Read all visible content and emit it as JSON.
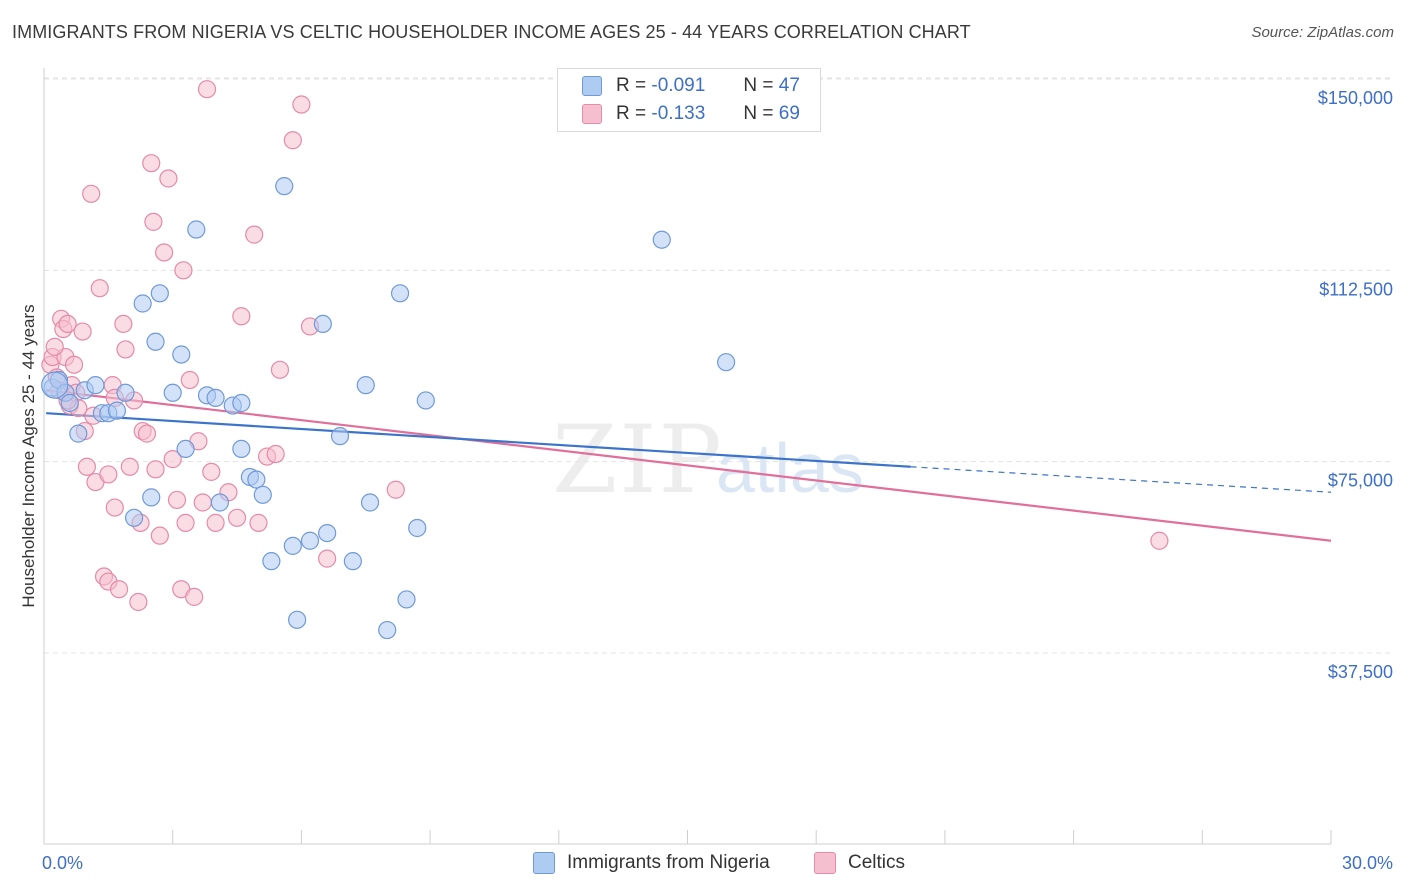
{
  "header": {
    "title": "IMMIGRANTS FROM NIGERIA VS CELTIC HOUSEHOLDER INCOME AGES 25 - 44 YEARS CORRELATION CHART",
    "source": "Source: ZipAtlas.com"
  },
  "legend": {
    "r_label": "R =",
    "n_label": "N =",
    "series": [
      {
        "r": "-0.091",
        "n": "47"
      },
      {
        "r": "-0.133",
        "n": "69"
      }
    ]
  },
  "bottom_legend": [
    "Immigrants from Nigeria",
    "Celtics"
  ],
  "watermark": {
    "zip": "ZIP",
    "atlas": "atlas"
  },
  "colors": {
    "nigeria_fill": "#aecbf2",
    "nigeria_stroke": "#6f9ad8",
    "nigeria_line": "#3b74c9",
    "celtics_fill": "#f6bfd0",
    "celtics_stroke": "#e58aa8",
    "celtics_line": "#e0709a",
    "tick_label": "#3d6fc6"
  },
  "chart_data": {
    "type": "scatter",
    "title": "IMMIGRANTS FROM NIGERIA VS CELTIC HOUSEHOLDER INCOME AGES 25 - 44 YEARS CORRELATION CHART",
    "xlabel": "",
    "ylabel": "Householder Income Ages 25 - 44 years",
    "xlim": [
      0,
      30
    ],
    "ylim": [
      18000,
      155000
    ],
    "x_tick_labels": [
      "0.0%",
      "30.0%"
    ],
    "y_ticks": [
      37500,
      75000,
      112500,
      150000
    ],
    "y_tick_labels": [
      "$37,500",
      "$75,000",
      "$112,500",
      "$150,000"
    ],
    "grid": true,
    "legend_position": "top-center",
    "series": [
      {
        "name": "Immigrants from Nigeria",
        "r": -0.091,
        "n": 47,
        "trend": {
          "x0": 0.05,
          "y0": 84500,
          "x1": 20.2,
          "y1": 74000,
          "dashed_to_x": 30,
          "dashed_to_y": 69000
        },
        "points": [
          [
            0.2,
            89500
          ],
          [
            0.35,
            91000
          ],
          [
            0.5,
            88500
          ],
          [
            0.6,
            86500
          ],
          [
            0.8,
            80500
          ],
          [
            0.95,
            89000
          ],
          [
            1.2,
            90000
          ],
          [
            1.35,
            84500
          ],
          [
            1.5,
            84500
          ],
          [
            1.7,
            85000
          ],
          [
            1.9,
            88500
          ],
          [
            2.1,
            64000
          ],
          [
            2.3,
            106000
          ],
          [
            2.5,
            68000
          ],
          [
            2.6,
            98500
          ],
          [
            2.7,
            108000
          ],
          [
            3.0,
            88500
          ],
          [
            3.2,
            96000
          ],
          [
            3.3,
            77500
          ],
          [
            3.55,
            120500
          ],
          [
            3.8,
            88000
          ],
          [
            4.0,
            87500
          ],
          [
            4.1,
            67000
          ],
          [
            4.4,
            86000
          ],
          [
            4.6,
            86500
          ],
          [
            4.6,
            77500
          ],
          [
            4.8,
            72000
          ],
          [
            4.95,
            71500
          ],
          [
            5.1,
            68500
          ],
          [
            5.3,
            55500
          ],
          [
            5.6,
            129000
          ],
          [
            5.8,
            58500
          ],
          [
            5.9,
            44000
          ],
          [
            6.2,
            59500
          ],
          [
            6.5,
            102000
          ],
          [
            6.6,
            61000
          ],
          [
            6.9,
            80000
          ],
          [
            7.2,
            55500
          ],
          [
            7.5,
            90000
          ],
          [
            7.6,
            67000
          ],
          [
            8.0,
            42000
          ],
          [
            8.3,
            108000
          ],
          [
            8.45,
            48000
          ],
          [
            8.7,
            62000
          ],
          [
            8.9,
            87000
          ],
          [
            14.4,
            118500
          ],
          [
            15.9,
            94500
          ]
        ]
      },
      {
        "name": "Celtics",
        "r": -0.133,
        "n": 69,
        "trend": {
          "x0": 0.05,
          "y0": 89000,
          "x1": 30,
          "y1": 59500
        },
        "points": [
          [
            0.15,
            94000
          ],
          [
            0.2,
            95500
          ],
          [
            0.3,
            91500
          ],
          [
            0.35,
            89000
          ],
          [
            0.4,
            103000
          ],
          [
            0.45,
            101000
          ],
          [
            0.5,
            95500
          ],
          [
            0.55,
            102000
          ],
          [
            0.6,
            86000
          ],
          [
            0.65,
            90000
          ],
          [
            0.7,
            94000
          ],
          [
            0.75,
            88500
          ],
          [
            0.8,
            85500
          ],
          [
            0.9,
            100500
          ],
          [
            0.95,
            81000
          ],
          [
            1.0,
            74000
          ],
          [
            1.1,
            127500
          ],
          [
            1.15,
            84000
          ],
          [
            1.2,
            71000
          ],
          [
            1.3,
            109000
          ],
          [
            1.4,
            52500
          ],
          [
            1.5,
            51500
          ],
          [
            1.5,
            72500
          ],
          [
            1.6,
            90000
          ],
          [
            1.65,
            66000
          ],
          [
            1.75,
            50000
          ],
          [
            1.85,
            102000
          ],
          [
            1.9,
            97000
          ],
          [
            2.0,
            74000
          ],
          [
            2.1,
            87000
          ],
          [
            2.2,
            47500
          ],
          [
            2.25,
            63000
          ],
          [
            2.3,
            81000
          ],
          [
            2.4,
            80500
          ],
          [
            2.5,
            133500
          ],
          [
            2.55,
            122000
          ],
          [
            2.6,
            73500
          ],
          [
            2.7,
            60500
          ],
          [
            2.8,
            116000
          ],
          [
            2.9,
            130500
          ],
          [
            3.0,
            75500
          ],
          [
            3.1,
            67500
          ],
          [
            3.2,
            50000
          ],
          [
            3.25,
            112500
          ],
          [
            3.3,
            63000
          ],
          [
            3.4,
            91000
          ],
          [
            3.5,
            48500
          ],
          [
            3.6,
            79000
          ],
          [
            3.7,
            67000
          ],
          [
            3.8,
            148000
          ],
          [
            3.9,
            73000
          ],
          [
            4.0,
            63000
          ],
          [
            4.3,
            69000
          ],
          [
            4.5,
            64000
          ],
          [
            4.6,
            103500
          ],
          [
            4.9,
            119500
          ],
          [
            5.0,
            63000
          ],
          [
            5.2,
            76000
          ],
          [
            5.4,
            76500
          ],
          [
            5.5,
            93000
          ],
          [
            5.8,
            138000
          ],
          [
            6.0,
            145000
          ],
          [
            6.2,
            101500
          ],
          [
            6.6,
            56000
          ],
          [
            8.2,
            69500
          ],
          [
            26.0,
            59500
          ],
          [
            0.55,
            87000
          ],
          [
            0.25,
            97500
          ],
          [
            1.65,
            87500
          ]
        ]
      }
    ]
  }
}
